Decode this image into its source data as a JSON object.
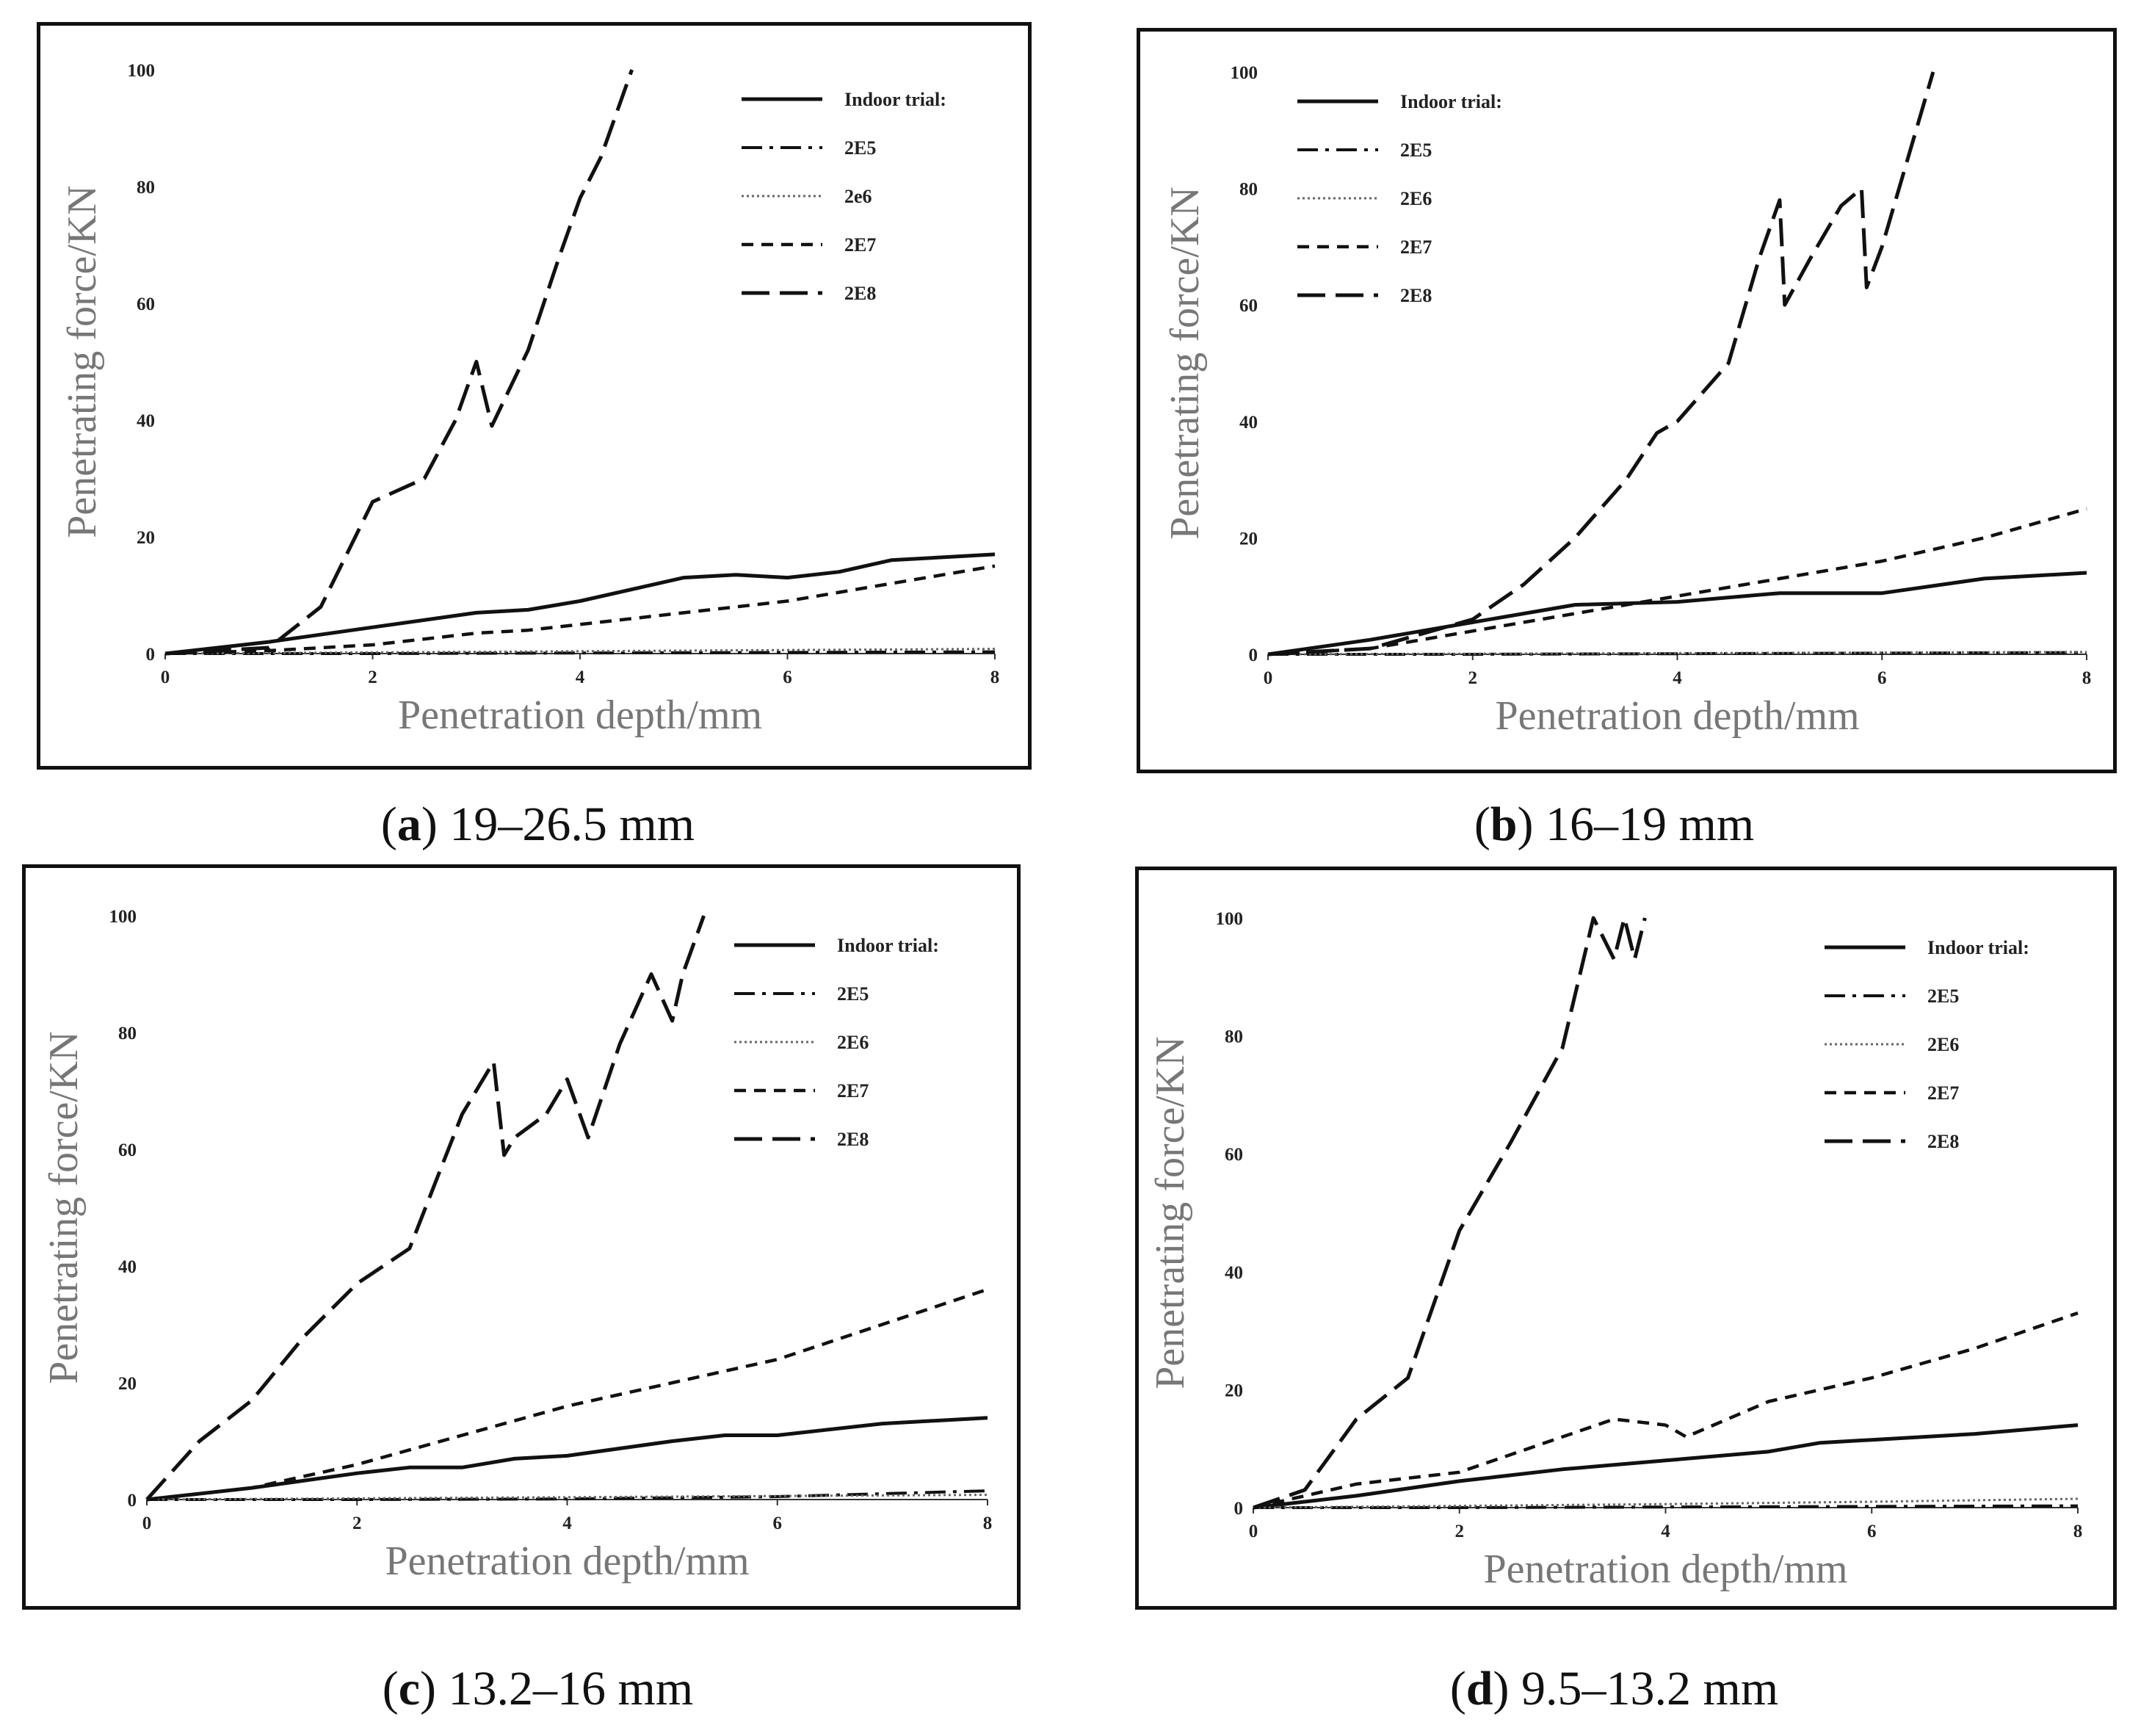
{
  "chart_data": [
    {
      "id": "a",
      "type": "line",
      "caption_letter": "a",
      "caption_text": "19–26.5 mm",
      "xlabel": "Penetration depth/mm",
      "ylabel": "Penetrating force/KN",
      "xlim": [
        0,
        8
      ],
      "ylim": [
        0,
        100
      ],
      "xticks": [
        0,
        2,
        4,
        6,
        8
      ],
      "yticks": [
        0,
        20,
        40,
        60,
        80,
        100
      ],
      "series": [
        {
          "name": "Indoor trial",
          "legend": "Indoor  trial:",
          "style": "solid",
          "x": [
            0,
            1,
            2,
            3,
            3.5,
            4,
            5,
            5.5,
            6,
            6.5,
            7,
            8
          ],
          "y": [
            0,
            2,
            4.5,
            7,
            7.5,
            9,
            13,
            13.5,
            13,
            14,
            16,
            17
          ]
        },
        {
          "name": "2E5",
          "legend": "2E5",
          "style": "dashdot",
          "x": [
            0,
            2,
            4,
            6,
            8
          ],
          "y": [
            0,
            0,
            0.1,
            0.2,
            0.3
          ]
        },
        {
          "name": "2e6",
          "legend": "2e6",
          "style": "dotted",
          "x": [
            0,
            2,
            4,
            6,
            8
          ],
          "y": [
            0,
            0.2,
            0.4,
            0.6,
            0.8
          ]
        },
        {
          "name": "2E7",
          "legend": "2E7",
          "style": "dashed",
          "x": [
            0,
            1,
            2,
            3,
            3.5,
            4,
            5,
            6,
            7,
            8
          ],
          "y": [
            0,
            0.5,
            1.5,
            3.5,
            4,
            5,
            7,
            9,
            12,
            15
          ]
        },
        {
          "name": "2E8",
          "legend": "2E8",
          "style": "longdash",
          "x": [
            0,
            1,
            1.5,
            2,
            2.5,
            2.8,
            3,
            3.15,
            3.5,
            3.8,
            4,
            4.2,
            4.5
          ],
          "y": [
            0,
            1,
            8,
            26,
            30,
            40,
            50,
            39,
            52,
            68,
            78,
            85,
            100
          ]
        }
      ]
    },
    {
      "id": "b",
      "type": "line",
      "caption_letter": "b",
      "caption_text": "16–19 mm",
      "xlabel": "Penetration depth/mm",
      "ylabel": "Penetrating force/KN",
      "xlim": [
        0,
        8
      ],
      "ylim": [
        0,
        100
      ],
      "xticks": [
        0,
        2,
        4,
        6,
        8
      ],
      "yticks": [
        0,
        20,
        40,
        60,
        80,
        100
      ],
      "series": [
        {
          "name": "Indoor trial",
          "legend": "Indoor  trial:",
          "style": "solid",
          "x": [
            0,
            1,
            2,
            3,
            4,
            5,
            6,
            7,
            8
          ],
          "y": [
            0,
            2.5,
            5.5,
            8.5,
            9,
            10.5,
            10.5,
            13,
            14
          ]
        },
        {
          "name": "2E5",
          "legend": "2E5",
          "style": "dashdot",
          "x": [
            0,
            2,
            4,
            6,
            8
          ],
          "y": [
            0,
            0,
            0.1,
            0.2,
            0.3
          ]
        },
        {
          "name": "2E6",
          "legend": "2E6",
          "style": "dotted",
          "x": [
            0,
            2,
            4,
            6,
            8
          ],
          "y": [
            0,
            0.1,
            0.2,
            0.3,
            0.4
          ]
        },
        {
          "name": "2E7",
          "legend": "2E7",
          "style": "dashed",
          "x": [
            0,
            1,
            2,
            3,
            4,
            5,
            6,
            7,
            8
          ],
          "y": [
            0,
            1,
            4,
            7,
            10,
            13,
            16,
            20,
            25
          ]
        },
        {
          "name": "2E8",
          "legend": "2E8",
          "style": "longdash",
          "x": [
            0,
            1,
            2,
            2.5,
            3,
            3.5,
            3.8,
            4,
            4.5,
            4.8,
            5,
            5.05,
            5.3,
            5.6,
            5.8,
            5.85,
            6,
            6.5
          ],
          "y": [
            0,
            1,
            6,
            12,
            20,
            30,
            38,
            40,
            50,
            68,
            78,
            60,
            68,
            77,
            80,
            63,
            70,
            100
          ]
        }
      ]
    },
    {
      "id": "c",
      "type": "line",
      "caption_letter": "c",
      "caption_text": "13.2–16 mm",
      "xlabel": "Penetration depth/mm",
      "ylabel": "Penetrating force/KN",
      "xlim": [
        0,
        8
      ],
      "ylim": [
        0,
        100
      ],
      "xticks": [
        0,
        2,
        4,
        6,
        8
      ],
      "yticks": [
        0,
        20,
        40,
        60,
        80,
        100
      ],
      "series": [
        {
          "name": "Indoor trial",
          "legend": "Indoor  trial:",
          "style": "solid",
          "x": [
            0,
            1,
            2,
            2.5,
            3,
            3.5,
            4,
            5,
            5.5,
            6,
            7,
            8
          ],
          "y": [
            0,
            2,
            4.5,
            5.5,
            5.5,
            7,
            7.5,
            10,
            11,
            11,
            13,
            14
          ]
        },
        {
          "name": "2E5",
          "legend": "2E5",
          "style": "dashdot",
          "x": [
            0,
            2,
            4,
            6,
            8
          ],
          "y": [
            0,
            0,
            0.1,
            0.5,
            1.5
          ]
        },
        {
          "name": "2E6",
          "legend": "2E6",
          "style": "dotted",
          "x": [
            0,
            2,
            4,
            6,
            8
          ],
          "y": [
            0,
            0.2,
            0.4,
            0.6,
            0.8
          ]
        },
        {
          "name": "2E7",
          "legend": "2E7",
          "style": "dashed",
          "x": [
            0,
            1,
            2,
            3,
            4,
            5,
            6,
            7,
            8
          ],
          "y": [
            0,
            2,
            6,
            11,
            16,
            20,
            24,
            30,
            36
          ]
        },
        {
          "name": "2E8",
          "legend": "2E8",
          "style": "longdash",
          "x": [
            0,
            0.5,
            1,
            1.5,
            2,
            2.5,
            3,
            3.3,
            3.4,
            3.5,
            3.8,
            4,
            4.2,
            4.5,
            4.8,
            5,
            5.1,
            5.3
          ],
          "y": [
            0,
            10,
            17,
            28,
            37,
            43,
            66,
            75,
            59,
            62,
            66,
            72,
            62,
            78,
            90,
            82,
            90,
            100
          ]
        }
      ]
    },
    {
      "id": "d",
      "type": "line",
      "caption_letter": "d",
      "caption_text": "9.5–13.2 mm",
      "xlabel": "Penetration depth/mm",
      "ylabel": "Penetrating force/KN",
      "xlim": [
        0,
        8
      ],
      "ylim": [
        0,
        100
      ],
      "xticks": [
        0,
        2,
        4,
        6,
        8
      ],
      "yticks": [
        0,
        20,
        40,
        60,
        80,
        100
      ],
      "series": [
        {
          "name": "Indoor trial",
          "legend": "Indoor  trial:",
          "style": "solid",
          "x": [
            0,
            1,
            2,
            3,
            4,
            5,
            5.5,
            6,
            7,
            8
          ],
          "y": [
            0,
            2,
            4.5,
            6.5,
            8,
            9.5,
            11,
            11.5,
            12.5,
            14
          ]
        },
        {
          "name": "2E5",
          "legend": "2E5",
          "style": "dashdot",
          "x": [
            0,
            2,
            4,
            6,
            8
          ],
          "y": [
            0,
            0,
            0.1,
            0.2,
            0.3
          ]
        },
        {
          "name": "2E6",
          "legend": "2E6",
          "style": "dotted",
          "x": [
            0,
            2,
            4,
            6,
            8
          ],
          "y": [
            0,
            0.3,
            0.6,
            1,
            1.5
          ]
        },
        {
          "name": "2E7",
          "legend": "2E7",
          "style": "dashed",
          "x": [
            0,
            1,
            2,
            3,
            3.5,
            4,
            4.2,
            5,
            6,
            7,
            8
          ],
          "y": [
            0,
            4,
            6,
            12,
            15,
            14,
            12,
            18,
            22,
            27,
            33
          ]
        },
        {
          "name": "2E8",
          "legend": "2E8",
          "style": "longdash",
          "x": [
            0,
            0.5,
            1,
            1.5,
            2,
            2.5,
            3,
            3.3,
            3.5,
            3.6,
            3.7,
            3.8
          ],
          "y": [
            0,
            3,
            15,
            22,
            47,
            62,
            78,
            100,
            93,
            100,
            93,
            100
          ]
        }
      ]
    }
  ]
}
